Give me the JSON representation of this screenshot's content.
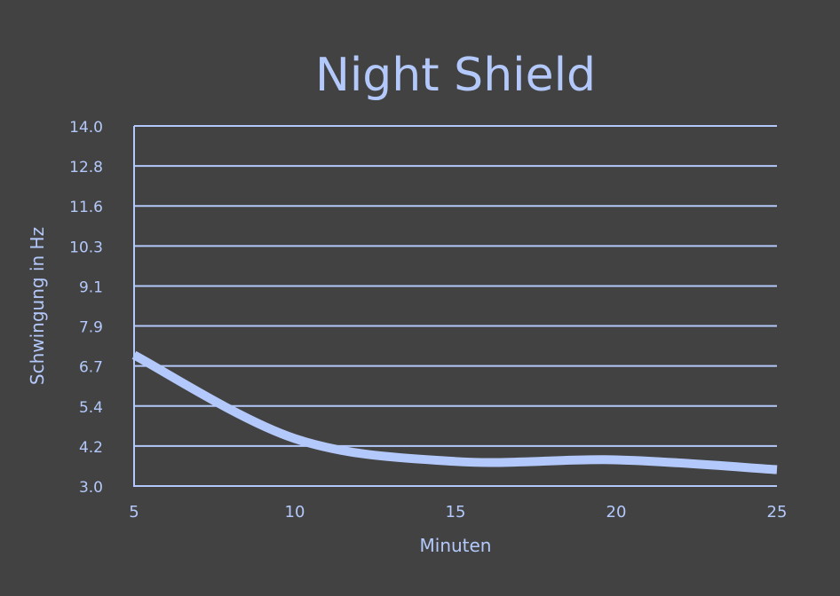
{
  "colors": {
    "background": "#424242",
    "accent": "#b4c9fb"
  },
  "chart_data": {
    "type": "line",
    "title": "Night Shield",
    "xlabel": "Minuten",
    "ylabel": "Schwingung in Hz",
    "x": [
      5,
      10,
      15,
      20,
      25
    ],
    "series": [
      {
        "values": [
          7.0,
          4.45,
          3.75,
          3.8,
          3.5
        ]
      }
    ],
    "xlim": [
      5,
      25
    ],
    "ylim": [
      3.0,
      14.0
    ],
    "xticks": [
      "5",
      "10",
      "15",
      "20",
      "25"
    ],
    "yticks": [
      "3.0",
      "4.2",
      "5.4",
      "6.7",
      "7.9",
      "9.1",
      "10.3",
      "11.6",
      "12.8",
      "14.0"
    ],
    "grid": true,
    "smooth": true
  }
}
